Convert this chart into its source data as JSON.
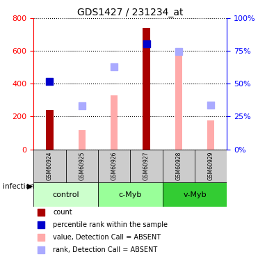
{
  "title": "GDS1427 / 231234_at",
  "samples": [
    "GSM60924",
    "GSM60925",
    "GSM60926",
    "GSM60927",
    "GSM60928",
    "GSM60929"
  ],
  "groups": [
    {
      "name": "control",
      "samples": [
        "GSM60924",
        "GSM60925"
      ],
      "color": "#ccffcc"
    },
    {
      "name": "c-Myb",
      "samples": [
        "GSM60926",
        "GSM60927"
      ],
      "color": "#99ff99"
    },
    {
      "name": "v-Myb",
      "samples": [
        "GSM60928",
        "GSM60929"
      ],
      "color": "#33cc33"
    }
  ],
  "infection_label": "infection",
  "count_values": [
    240,
    null,
    null,
    740,
    null,
    null
  ],
  "percentile_values": [
    415,
    null,
    null,
    645,
    null,
    null
  ],
  "value_absent": [
    null,
    115,
    330,
    null,
    585,
    175
  ],
  "rank_absent": [
    null,
    265,
    505,
    null,
    595,
    270
  ],
  "ylim_left": [
    0,
    800
  ],
  "ylim_right": [
    0,
    100
  ],
  "yticks_left": [
    0,
    200,
    400,
    600,
    800
  ],
  "yticks_right": [
    0,
    25,
    50,
    75,
    100
  ],
  "count_color": "#aa0000",
  "percentile_color": "#0000cc",
  "value_absent_color": "#ffaaaa",
  "rank_absent_color": "#aaaaff",
  "legend_items": [
    {
      "label": "count",
      "color": "#aa0000"
    },
    {
      "label": "percentile rank within the sample",
      "color": "#0000cc"
    },
    {
      "label": "value, Detection Call = ABSENT",
      "color": "#ffaaaa"
    },
    {
      "label": "rank, Detection Call = ABSENT",
      "color": "#aaaaff"
    }
  ]
}
